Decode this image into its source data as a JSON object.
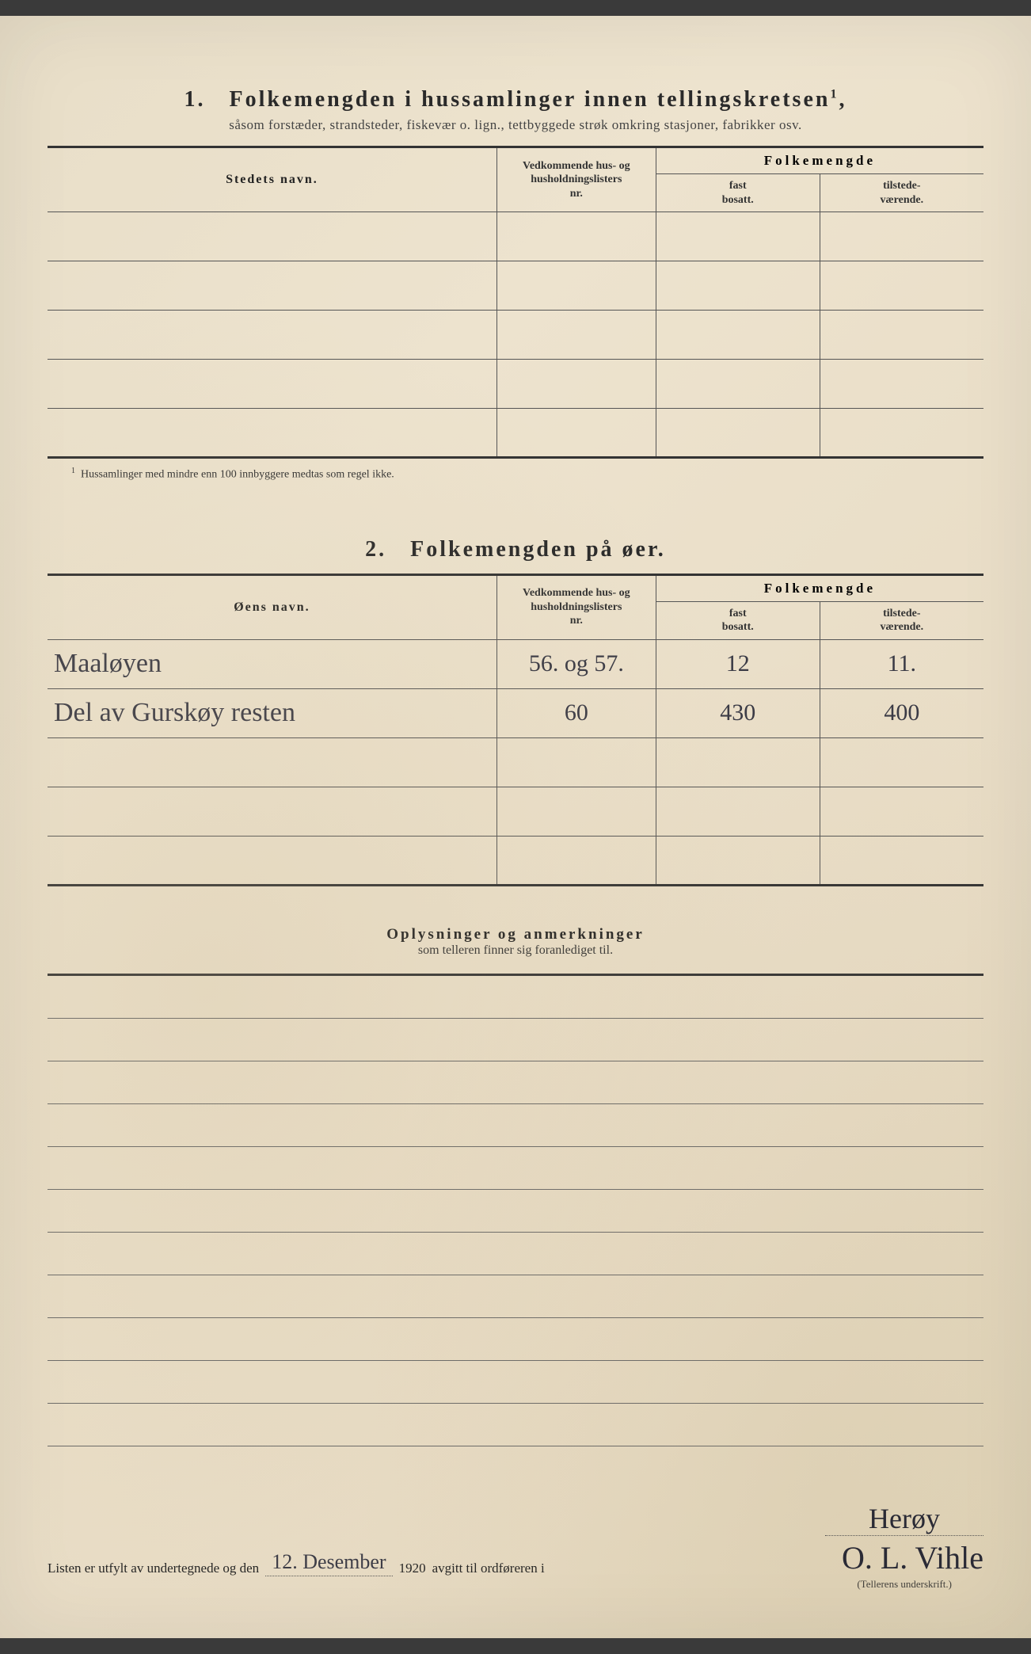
{
  "section1": {
    "number": "1.",
    "title": "Folkemengden i hussamlinger innen tellingskretsen",
    "title_sup": "1",
    "subtitle": "såsom forstæder, strandsteder, fiskevær o. lign., tettbyggede strøk omkring stasjoner, fabrikker osv.",
    "headers": {
      "name": "Stedets navn.",
      "nr_line1": "Vedkommende hus- og",
      "nr_line2": "husholdningslisters",
      "nr_line3": "nr.",
      "folkemengde": "Folkemengde",
      "fast_line1": "fast",
      "fast_line2": "bosatt.",
      "til_line1": "tilstede-",
      "til_line2": "værende."
    },
    "rows": 5,
    "footnote_sup": "1",
    "footnote": "Hussamlinger med mindre enn 100 innbyggere medtas som regel ikke."
  },
  "section2": {
    "number": "2.",
    "title": "Folkemengden på øer.",
    "headers": {
      "name": "Øens navn.",
      "nr_line1": "Vedkommende hus- og",
      "nr_line2": "husholdningslisters",
      "nr_line3": "nr.",
      "folkemengde": "Folkemengde",
      "fast_line1": "fast",
      "fast_line2": "bosatt.",
      "til_line1": "tilstede-",
      "til_line2": "værende."
    },
    "data_rows": [
      {
        "name": "Maaløyen",
        "nr": "56. og 57.",
        "fast": "12",
        "til": "11."
      },
      {
        "name": "Del av Gurskøy   resten",
        "nr": "60",
        "fast": "430",
        "til": "400"
      }
    ],
    "empty_rows": 3
  },
  "section3": {
    "title": "Oplysninger og anmerkninger",
    "subtitle": "som telleren finner sig foranlediget til.",
    "line_count": 11
  },
  "signature": {
    "prefix": "Listen er utfylt av undertegnede og den",
    "date": "12. Desember",
    "year": "1920",
    "mid": "avgitt til ordføreren i",
    "place": "Herøy",
    "name": "O. L. Vihle",
    "caption": "(Tellerens underskrift.)"
  },
  "colors": {
    "paper": "#ede3ce",
    "ink": "#2a2a2a",
    "rule": "#333333",
    "handwriting": "#3a3a45"
  }
}
